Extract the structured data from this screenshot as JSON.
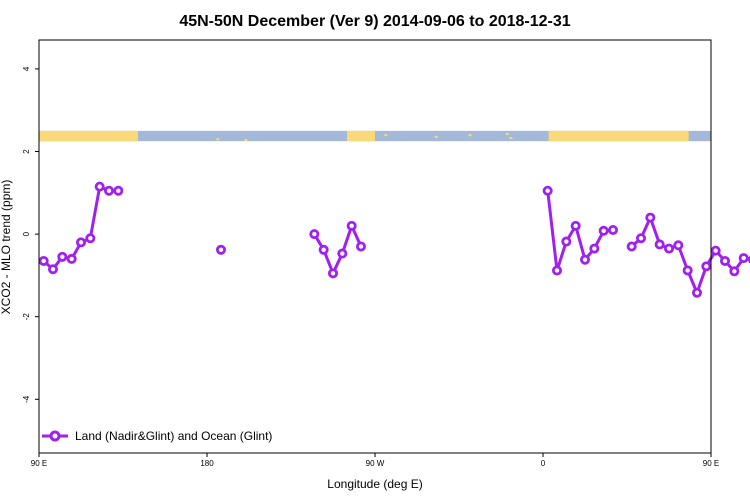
{
  "chart_data": {
    "type": "line",
    "title": "45N-50N December (Ver 9)   2014-09-06 to 2018-12-31",
    "xlabel": "Longitude (deg E)",
    "ylabel": "XCO2 - MLO trend (ppm)",
    "xlim": [
      90,
      450
    ],
    "ylim": [
      -5.3,
      4.7
    ],
    "xticks": [
      {
        "value": 90,
        "label": "90 E"
      },
      {
        "value": 180,
        "label": "180"
      },
      {
        "value": 270,
        "label": "90 W"
      },
      {
        "value": 360,
        "label": "0"
      },
      {
        "value": 450,
        "label": "90 E"
      },
      {
        "value": 540,
        "label": "180"
      }
    ],
    "yticks": [
      {
        "value": 4,
        "label": "4"
      },
      {
        "value": 2,
        "label": "2"
      },
      {
        "value": 0,
        "label": "0"
      },
      {
        "value": -2,
        "label": "-2"
      },
      {
        "value": -4,
        "label": "-4"
      }
    ],
    "grid": false,
    "legend_position": "bottom-left",
    "series": [
      {
        "name": "Land (Nadir&Glint) and Ocean (Glint)",
        "color": "#a020f0",
        "segments": [
          [
            [
              92.5,
              -0.65
            ],
            [
              97.5,
              -0.85
            ],
            [
              102.5,
              -0.55
            ],
            [
              107.5,
              -0.6
            ],
            [
              112.5,
              -0.2
            ],
            [
              117.5,
              -0.1
            ],
            [
              122.5,
              1.15
            ],
            [
              127.5,
              1.05
            ],
            [
              132.5,
              1.05
            ]
          ],
          [
            [
              187.5,
              -0.38
            ]
          ],
          [
            [
              237.5,
              0.0
            ],
            [
              242.5,
              -0.38
            ],
            [
              247.5,
              -0.95
            ],
            [
              252.5,
              -0.47
            ],
            [
              257.5,
              0.2
            ],
            [
              262.5,
              -0.3
            ]
          ],
          [
            [
              362.5,
              1.05
            ],
            [
              367.5,
              -0.88
            ],
            [
              372.5,
              -0.18
            ],
            [
              377.5,
              0.2
            ],
            [
              382.5,
              -0.62
            ],
            [
              387.5,
              -0.35
            ],
            [
              392.5,
              0.08
            ],
            [
              397.5,
              0.1
            ]
          ],
          [
            [
              407.5,
              -0.3
            ],
            [
              412.5,
              -0.1
            ],
            [
              417.5,
              0.4
            ],
            [
              422.5,
              -0.25
            ],
            [
              427.5,
              -0.35
            ],
            [
              432.5,
              -0.27
            ],
            [
              437.5,
              -0.88
            ],
            [
              442.5,
              -1.42
            ],
            [
              447.5,
              -0.78
            ],
            [
              452.5,
              -0.4
            ],
            [
              457.5,
              -0.65
            ],
            [
              462.5,
              -0.9
            ],
            [
              467.5,
              -0.58
            ],
            [
              472.5,
              -0.62
            ],
            [
              477.5,
              -0.18
            ],
            [
              482.5,
              -0.1
            ],
            [
              487.5,
              1.15
            ],
            [
              492.5,
              1.05
            ],
            [
              497.5,
              1.05
            ]
          ]
        ]
      }
    ],
    "land_ocean_band": {
      "y_range": [
        2.25,
        2.5
      ],
      "land_color": "#f9d978",
      "ocean_color": "#a4b9da",
      "land_ranges": [
        [
          90,
          143
        ],
        [
          255,
          270
        ],
        [
          363,
          438
        ],
        [
          496,
          512
        ]
      ],
      "coast_bits": [
        [
          185,
          2.32
        ],
        [
          200,
          2.3
        ],
        [
          275,
          2.42
        ],
        [
          302,
          2.38
        ],
        [
          320,
          2.42
        ],
        [
          340,
          2.45
        ],
        [
          342,
          2.35
        ]
      ]
    }
  }
}
